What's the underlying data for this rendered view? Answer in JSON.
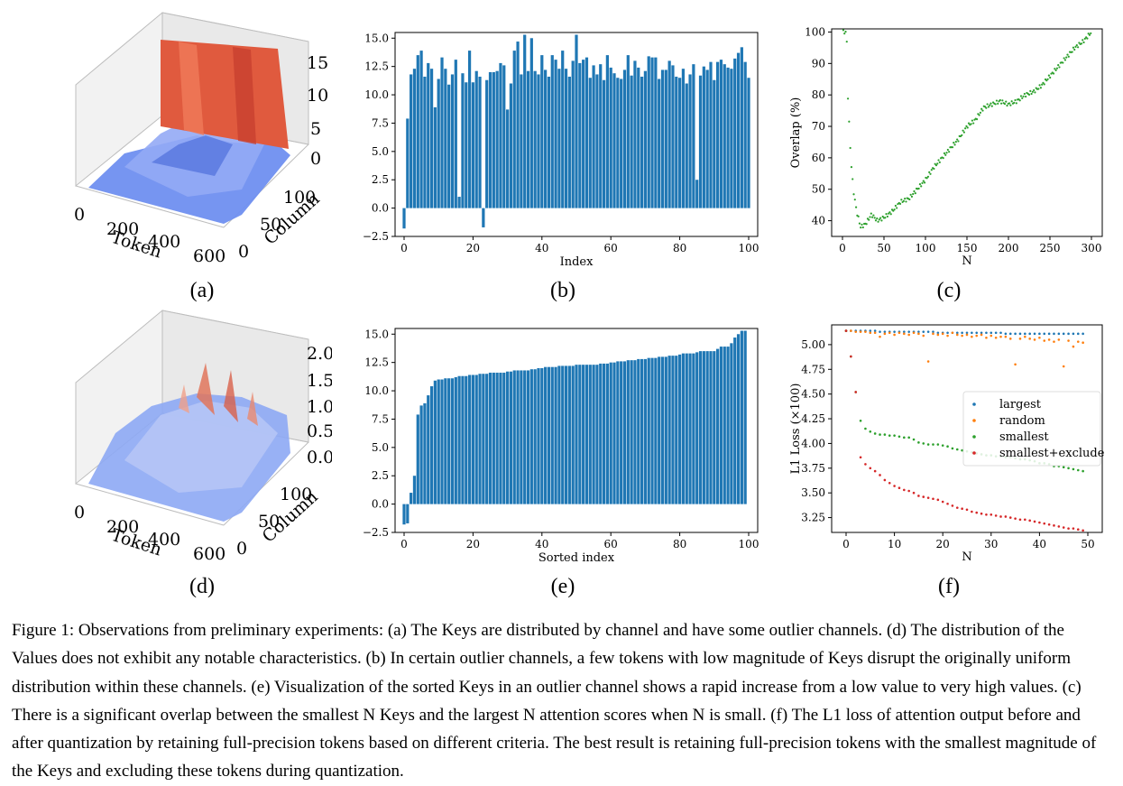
{
  "panels": {
    "a": {
      "label": "(a)",
      "chart_data": {
        "type": "surface3d",
        "x_axis_label": "Token",
        "y_axis_label": "Column",
        "x_ticks": [
          "0",
          "200",
          "400",
          "600"
        ],
        "y_ticks": [
          "0",
          "50",
          "100"
        ],
        "z_ticks": [
          "0",
          "5",
          "10",
          "15"
        ],
        "zlim": [
          0,
          16
        ]
      }
    },
    "b": {
      "label": "(b)",
      "chart_data": {
        "type": "bar",
        "xlabel": "Index",
        "xlim": [
          0,
          100
        ],
        "ylim": [
          -2.5,
          15.5
        ],
        "x_ticks": [
          "0",
          "20",
          "40",
          "60",
          "80",
          "100"
        ],
        "y_ticks": [
          "−2.5",
          "0.0",
          "2.5",
          "5.0",
          "7.5",
          "10.0",
          "12.5",
          "15.0"
        ],
        "values": [
          -1.8,
          7.9,
          11.8,
          12.3,
          13.5,
          13.9,
          11.6,
          12.8,
          12.3,
          8.9,
          11.4,
          13.3,
          12.3,
          10.9,
          11.8,
          13.1,
          1.0,
          11.9,
          11.1,
          13.9,
          11.1,
          12.1,
          11.6,
          -1.7,
          11.3,
          12.0,
          12.0,
          12.1,
          12.8,
          12.6,
          8.7,
          11.0,
          13.9,
          14.7,
          11.8,
          15.3,
          12.1,
          15.0,
          12.1,
          11.8,
          13.5,
          12.2,
          11.6,
          13.5,
          13.1,
          12.3,
          13.9,
          12.3,
          11.6,
          13.0,
          15.3,
          12.8,
          13.1,
          13.3,
          11.5,
          12.6,
          11.8,
          12.7,
          11.3,
          13.5,
          12.4,
          11.9,
          11.5,
          11.4,
          12.2,
          13.5,
          11.7,
          13.0,
          12.4,
          11.6,
          12.1,
          13.4,
          13.3,
          13.3,
          11.4,
          12.2,
          12.2,
          13.0,
          12.6,
          11.6,
          11.5,
          12.3,
          11.0,
          11.8,
          12.7,
          2.5,
          11.7,
          12.5,
          12.2,
          12.9,
          11.3,
          12.9,
          13.1,
          12.7,
          12.4,
          12.3,
          13.2,
          13.7,
          14.2,
          12.9,
          11.5
        ]
      }
    },
    "c": {
      "label": "(c)",
      "chart_data": {
        "type": "scatter",
        "xlabel": "N",
        "ylabel": "Overlap (%)",
        "xlim": [
          0,
          300
        ],
        "ylim": [
          35,
          101
        ],
        "x_ticks": [
          "0",
          "50",
          "100",
          "150",
          "200",
          "250",
          "300"
        ],
        "y_ticks": [
          "40",
          "50",
          "60",
          "70",
          "80",
          "90",
          "100"
        ],
        "color": "#2ca02c",
        "curve": [
          [
            1,
            100
          ],
          [
            5,
            100
          ],
          [
            6,
            83
          ],
          [
            8,
            71
          ],
          [
            10,
            60
          ],
          [
            13,
            50
          ],
          [
            17,
            43
          ],
          [
            22,
            38
          ],
          [
            28,
            39
          ],
          [
            35,
            42
          ],
          [
            42,
            40
          ],
          [
            50,
            41
          ],
          [
            60,
            43
          ],
          [
            70,
            46
          ],
          [
            80,
            47
          ],
          [
            90,
            50
          ],
          [
            100,
            53
          ],
          [
            110,
            57
          ],
          [
            120,
            60
          ],
          [
            130,
            63
          ],
          [
            140,
            66
          ],
          [
            150,
            70
          ],
          [
            160,
            72
          ],
          [
            170,
            76
          ],
          [
            180,
            77
          ],
          [
            190,
            78
          ],
          [
            200,
            77
          ],
          [
            210,
            78
          ],
          [
            220,
            80
          ],
          [
            230,
            81
          ],
          [
            240,
            83
          ],
          [
            250,
            86
          ],
          [
            260,
            89
          ],
          [
            270,
            92
          ],
          [
            280,
            95
          ],
          [
            290,
            97
          ],
          [
            300,
            100
          ]
        ]
      }
    },
    "d": {
      "label": "(d)",
      "chart_data": {
        "type": "surface3d",
        "x_axis_label": "Token",
        "y_axis_label": "Column",
        "x_ticks": [
          "0",
          "200",
          "400",
          "600"
        ],
        "y_ticks": [
          "0",
          "50",
          "100"
        ],
        "z_ticks": [
          "0.0",
          "0.5",
          "1.0",
          "1.5",
          "2.0"
        ],
        "zlim": [
          0,
          2.0
        ]
      }
    },
    "e": {
      "label": "(e)",
      "chart_data": {
        "type": "bar",
        "xlabel": "Sorted index",
        "xlim": [
          0,
          100
        ],
        "ylim": [
          -2.5,
          15.5
        ],
        "x_ticks": [
          "0",
          "20",
          "40",
          "60",
          "80",
          "100"
        ],
        "y_ticks": [
          "−2.5",
          "0.0",
          "2.5",
          "5.0",
          "7.5",
          "10.0",
          "12.5",
          "15.0"
        ],
        "values": [
          -1.8,
          -1.7,
          1.0,
          2.5,
          7.9,
          8.7,
          8.9,
          9.6,
          10.4,
          10.9,
          11.0,
          11.0,
          11.1,
          11.1,
          11.1,
          11.2,
          11.3,
          11.3,
          11.3,
          11.4,
          11.4,
          11.4,
          11.5,
          11.5,
          11.5,
          11.6,
          11.6,
          11.6,
          11.6,
          11.6,
          11.7,
          11.7,
          11.8,
          11.8,
          11.8,
          11.8,
          11.8,
          11.9,
          11.9,
          12.0,
          12.0,
          12.1,
          12.1,
          12.1,
          12.1,
          12.2,
          12.2,
          12.2,
          12.2,
          12.2,
          12.3,
          12.3,
          12.3,
          12.3,
          12.3,
          12.3,
          12.3,
          12.4,
          12.4,
          12.4,
          12.5,
          12.5,
          12.6,
          12.6,
          12.6,
          12.7,
          12.7,
          12.7,
          12.8,
          12.8,
          12.8,
          12.9,
          12.9,
          12.9,
          13.0,
          13.0,
          13.0,
          13.1,
          13.1,
          13.1,
          13.2,
          13.3,
          13.3,
          13.3,
          13.3,
          13.4,
          13.5,
          13.5,
          13.5,
          13.5,
          13.5,
          13.7,
          13.9,
          13.9,
          13.9,
          14.2,
          14.7,
          15.0,
          15.3,
          15.3
        ]
      }
    },
    "f": {
      "label": "(f)",
      "chart_data": {
        "type": "scatter",
        "xlabel": "N",
        "ylabel": "L1 Loss (×100)",
        "xlim": [
          0,
          50
        ],
        "ylim": [
          3.1,
          5.2
        ],
        "x_ticks": [
          "0",
          "10",
          "20",
          "30",
          "40",
          "50"
        ],
        "y_ticks": [
          "3.25",
          "3.50",
          "3.75",
          "4.00",
          "4.25",
          "4.50",
          "4.75",
          "5.00"
        ],
        "legend_position": "right",
        "series": [
          {
            "name": "largest",
            "color": "#1f77b4",
            "values": [
              5.14,
              5.14,
              5.14,
              5.14,
              5.14,
              5.14,
              5.14,
              5.13,
              5.13,
              5.13,
              5.13,
              5.13,
              5.13,
              5.13,
              5.13,
              5.13,
              5.13,
              5.13,
              5.13,
              5.12,
              5.12,
              5.12,
              5.12,
              5.12,
              5.12,
              5.12,
              5.12,
              5.12,
              5.12,
              5.12,
              5.12,
              5.12,
              5.12,
              5.11,
              5.11,
              5.11,
              5.11,
              5.11,
              5.11,
              5.11,
              5.11,
              5.11,
              5.11,
              5.11,
              5.11,
              5.11,
              5.11,
              5.11,
              5.11,
              5.11
            ]
          },
          {
            "name": "random",
            "color": "#ff7f0e",
            "values": [
              5.14,
              5.14,
              5.13,
              5.13,
              5.13,
              5.12,
              5.12,
              5.08,
              5.11,
              5.12,
              5.1,
              5.12,
              5.11,
              5.1,
              5.12,
              5.11,
              5.09,
              4.83,
              5.11,
              5.1,
              5.11,
              5.09,
              5.12,
              5.1,
              5.09,
              5.1,
              5.08,
              5.09,
              5.1,
              5.07,
              5.09,
              5.07,
              5.08,
              5.08,
              5.06,
              4.8,
              5.06,
              5.08,
              5.06,
              5.05,
              5.07,
              5.04,
              5.05,
              5.03,
              5.05,
              4.78,
              5.04,
              4.98,
              5.03,
              5.02
            ]
          },
          {
            "name": "smallest",
            "color": "#2ca02c",
            "values": [
              5.14,
              4.88,
              4.52,
              4.23,
              4.15,
              4.12,
              4.1,
              4.09,
              4.09,
              4.08,
              4.08,
              4.07,
              4.06,
              4.06,
              4.04,
              4.01,
              4.0,
              3.99,
              3.99,
              3.99,
              3.98,
              3.97,
              3.95,
              3.94,
              3.93,
              3.92,
              3.91,
              3.9,
              3.89,
              3.88,
              3.88,
              3.87,
              3.87,
              3.86,
              3.86,
              3.85,
              3.84,
              3.84,
              3.83,
              3.82,
              3.8,
              3.8,
              3.79,
              3.77,
              3.77,
              3.76,
              3.75,
              3.74,
              3.73,
              3.72
            ]
          },
          {
            "name": "smallest+exclude",
            "color": "#d62728",
            "values": [
              5.14,
              4.88,
              4.52,
              3.86,
              3.79,
              3.75,
              3.72,
              3.68,
              3.63,
              3.6,
              3.57,
              3.55,
              3.53,
              3.52,
              3.5,
              3.47,
              3.46,
              3.45,
              3.44,
              3.43,
              3.41,
              3.39,
              3.37,
              3.35,
              3.34,
              3.33,
              3.31,
              3.3,
              3.29,
              3.28,
              3.28,
              3.27,
              3.26,
              3.26,
              3.25,
              3.24,
              3.23,
              3.23,
              3.22,
              3.21,
              3.2,
              3.19,
              3.18,
              3.17,
              3.16,
              3.15,
              3.14,
              3.14,
              3.13,
              3.12
            ]
          }
        ]
      }
    }
  },
  "caption": "Figure 1: Observations from preliminary experiments: (a) The Keys are distributed by channel and have some outlier channels. (d) The distribution of the Values does not exhibit any notable characteristics. (b) In certain outlier channels, a few tokens with low magnitude of Keys disrupt the originally uniform distribution within these channels. (e) Visualization of the sorted Keys in an outlier channel shows a rapid increase from a low value to very high values. (c) There is a significant overlap between the smallest N Keys and the largest N attention scores when N is small. (f) The L1 loss of attention output before and after quantization by retaining full-precision tokens based on different criteria. The best result is retaining full-precision tokens with the smallest magnitude of the Keys and excluding these tokens during quantization."
}
